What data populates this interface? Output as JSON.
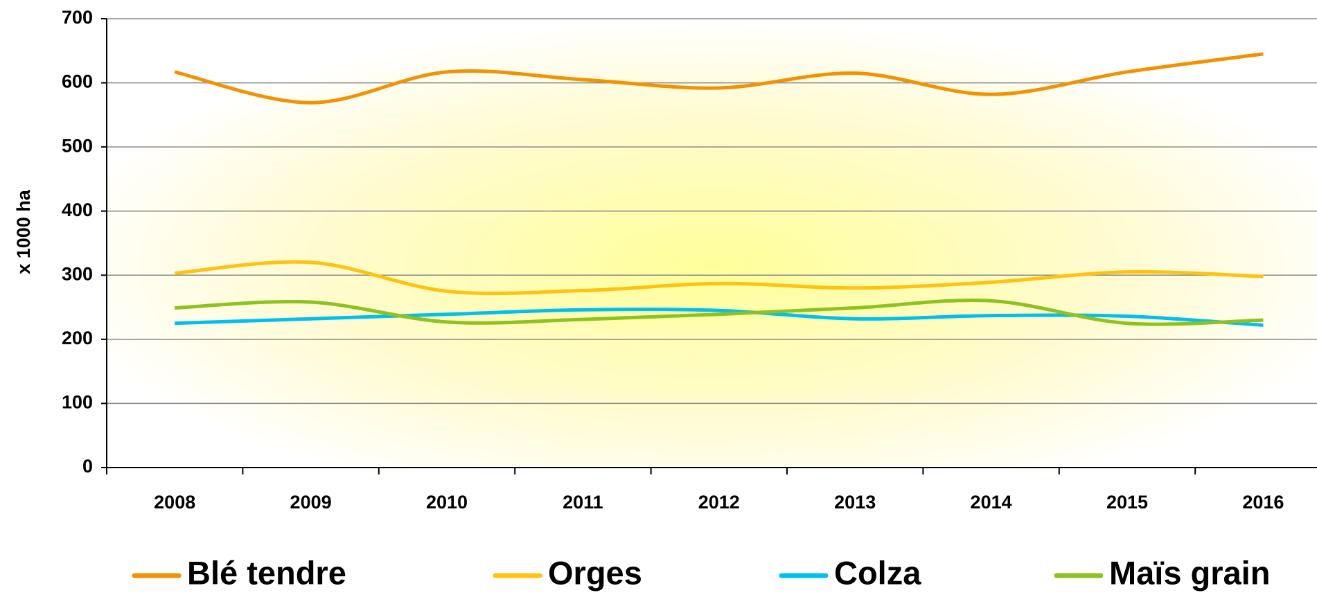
{
  "chart_data": {
    "type": "line",
    "ylabel": "x 1000 ha",
    "categories": [
      "2008",
      "2009",
      "2010",
      "2011",
      "2012",
      "2013",
      "2014",
      "2015",
      "2016"
    ],
    "series": [
      {
        "name": "Blé tendre",
        "color": "#f39200",
        "values": [
          617,
          569,
          617,
          605,
          592,
          615,
          582,
          617,
          645
        ]
      },
      {
        "name": "Orges",
        "color": "#ffc20e",
        "values": [
          303,
          320,
          275,
          276,
          287,
          280,
          289,
          305,
          298
        ]
      },
      {
        "name": "Colza",
        "color": "#00c0ee",
        "values": [
          225,
          232,
          239,
          246,
          245,
          232,
          237,
          236,
          222
        ]
      },
      {
        "name": "Maïs grain",
        "color": "#8dc21f",
        "values": [
          249,
          258,
          227,
          231,
          239,
          249,
          260,
          225,
          230
        ]
      }
    ],
    "ylim": [
      0,
      700
    ],
    "yticks": [
      0,
      100,
      200,
      300,
      400,
      500,
      600,
      700
    ],
    "grid": true
  }
}
